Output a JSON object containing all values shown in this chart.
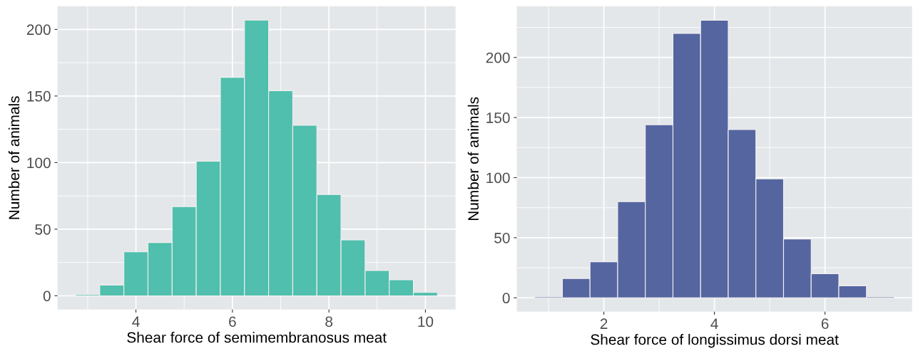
{
  "chart_data": [
    {
      "type": "histogram",
      "xlabel": "Shear force of semimembranosus meat",
      "ylabel": "Number of animals",
      "bins": [
        2.75,
        3.25,
        3.75,
        4.25,
        4.75,
        5.25,
        5.75,
        6.25,
        6.75,
        7.25,
        7.75,
        8.25,
        8.75,
        9.25,
        9.75,
        10.25
      ],
      "values": [
        1,
        8,
        33,
        40,
        67,
        101,
        164,
        207,
        154,
        128,
        76,
        42,
        19,
        12,
        2.5
      ],
      "color": "#50bfad",
      "xlim": [
        2.375,
        10.625
      ],
      "xticks": [
        4,
        6,
        8,
        10
      ],
      "ylim": [
        -10.35,
        217.35
      ],
      "yticks": [
        0,
        50,
        100,
        150,
        200
      ],
      "grid": true
    },
    {
      "type": "histogram",
      "xlabel": "Shear force of longissimus dorsi meat",
      "ylabel": "Number of animals",
      "bins": [
        0.75,
        1.25,
        1.75,
        2.25,
        2.75,
        3.25,
        3.75,
        4.25,
        4.75,
        5.25,
        5.75,
        6.25,
        6.75,
        7.25
      ],
      "values": [
        1,
        16,
        30,
        80,
        144,
        220,
        231,
        140,
        99,
        49,
        20,
        10,
        1
      ],
      "color": "#5565a0",
      "xlim": [
        0.425,
        7.575
      ],
      "xticks": [
        2,
        4,
        6
      ],
      "ylim": [
        -11.55,
        242.55
      ],
      "yticks": [
        0,
        50,
        100,
        150,
        200
      ],
      "grid": true
    }
  ]
}
